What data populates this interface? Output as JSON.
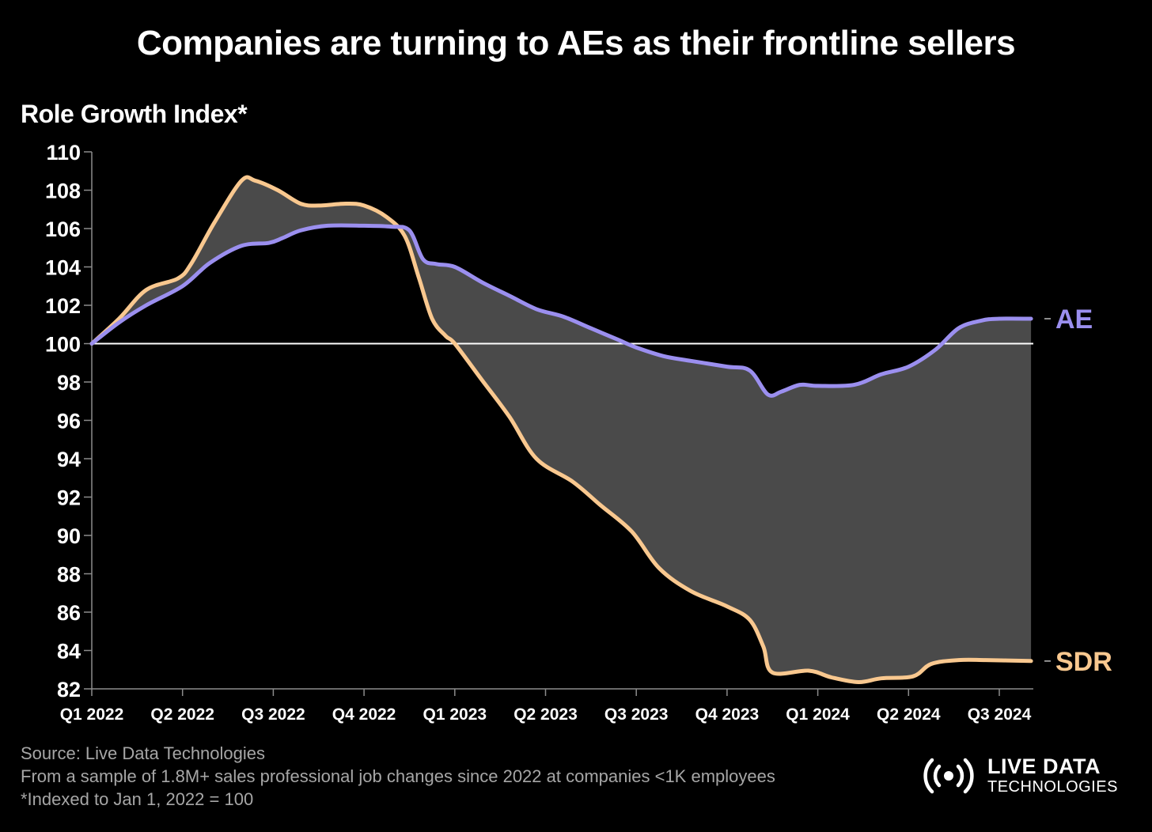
{
  "title": "Companies are turning to AEs as their frontline sellers",
  "ylabel": "Role Growth Index*",
  "footer": {
    "source": "Source: Live Data Technologies",
    "sample": "From a sample of 1.8M+ sales professional job changes since 2022 at companies <1K employees",
    "note": "*Indexed to Jan 1, 2022 = 100"
  },
  "logo": {
    "icon": "broadcast-signal-icon",
    "line1": "LIVE DATA",
    "line2": "TECHNOLOGIES"
  },
  "colors": {
    "background": "#000000",
    "ae": "#9b8fef",
    "sdr": "#f9c88f",
    "gap_fill": "#4a4a4a",
    "baseline": "#ffffff",
    "axis_text": "#ffffff",
    "footer_text": "#a6a6a6"
  },
  "chart_data": {
    "type": "line",
    "x_unit": "quarters since Q1 2022",
    "categories": [
      "Q1 2022",
      "Q2 2022",
      "Q3 2022",
      "Q4 2022",
      "Q1 2023",
      "Q2 2023",
      "Q3 2023",
      "Q4 2023",
      "Q1 2024",
      "Q2 2024",
      "Q3 2024"
    ],
    "ylim": [
      82,
      110
    ],
    "yticks": [
      82,
      84,
      86,
      88,
      90,
      92,
      94,
      96,
      98,
      100,
      102,
      104,
      106,
      108,
      110
    ],
    "xlim": [
      0,
      10.35
    ],
    "reference_line": 100,
    "shade_between_series": true,
    "series": [
      {
        "name": "AE",
        "points": [
          [
            0,
            100
          ],
          [
            0.3,
            101.1
          ],
          [
            0.6,
            102.0
          ],
          [
            1.0,
            103.0
          ],
          [
            1.3,
            104.2
          ],
          [
            1.65,
            105.1
          ],
          [
            1.95,
            105.25
          ],
          [
            2.1,
            105.5
          ],
          [
            2.3,
            105.9
          ],
          [
            2.6,
            106.15
          ],
          [
            3.0,
            106.15
          ],
          [
            3.3,
            106.1
          ],
          [
            3.5,
            105.9
          ],
          [
            3.65,
            104.4
          ],
          [
            3.8,
            104.15
          ],
          [
            4.0,
            104.0
          ],
          [
            4.3,
            103.2
          ],
          [
            4.6,
            102.5
          ],
          [
            4.9,
            101.8
          ],
          [
            5.2,
            101.4
          ],
          [
            5.5,
            100.8
          ],
          [
            5.8,
            100.2
          ],
          [
            6.0,
            99.8
          ],
          [
            6.3,
            99.35
          ],
          [
            6.6,
            99.1
          ],
          [
            7.0,
            98.8
          ],
          [
            7.25,
            98.6
          ],
          [
            7.45,
            97.35
          ],
          [
            7.6,
            97.5
          ],
          [
            7.8,
            97.85
          ],
          [
            8.0,
            97.8
          ],
          [
            8.4,
            97.85
          ],
          [
            8.7,
            98.4
          ],
          [
            9.0,
            98.8
          ],
          [
            9.3,
            99.7
          ],
          [
            9.55,
            100.8
          ],
          [
            9.8,
            101.2
          ],
          [
            10.0,
            101.3
          ],
          [
            10.35,
            101.3
          ]
        ]
      },
      {
        "name": "SDR",
        "points": [
          [
            0,
            100
          ],
          [
            0.3,
            101.3
          ],
          [
            0.6,
            102.8
          ],
          [
            0.95,
            103.4
          ],
          [
            1.1,
            104.2
          ],
          [
            1.35,
            106.3
          ],
          [
            1.65,
            108.5
          ],
          [
            1.8,
            108.5
          ],
          [
            2.05,
            108.0
          ],
          [
            2.3,
            107.3
          ],
          [
            2.5,
            107.2
          ],
          [
            2.8,
            107.3
          ],
          [
            3.0,
            107.2
          ],
          [
            3.25,
            106.6
          ],
          [
            3.45,
            105.6
          ],
          [
            3.6,
            103.5
          ],
          [
            3.75,
            101.3
          ],
          [
            3.9,
            100.4
          ],
          [
            4.0,
            100.0
          ],
          [
            4.3,
            98.1
          ],
          [
            4.6,
            96.2
          ],
          [
            4.9,
            94.0
          ],
          [
            5.3,
            92.8
          ],
          [
            5.6,
            91.6
          ],
          [
            5.95,
            90.2
          ],
          [
            6.25,
            88.3
          ],
          [
            6.6,
            87.1
          ],
          [
            7.0,
            86.3
          ],
          [
            7.25,
            85.6
          ],
          [
            7.4,
            84.2
          ],
          [
            7.5,
            82.85
          ],
          [
            7.9,
            82.95
          ],
          [
            8.15,
            82.6
          ],
          [
            8.45,
            82.35
          ],
          [
            8.7,
            82.55
          ],
          [
            9.05,
            82.65
          ],
          [
            9.25,
            83.3
          ],
          [
            9.55,
            83.5
          ],
          [
            9.85,
            83.5
          ],
          [
            10.35,
            83.45
          ]
        ]
      }
    ]
  }
}
